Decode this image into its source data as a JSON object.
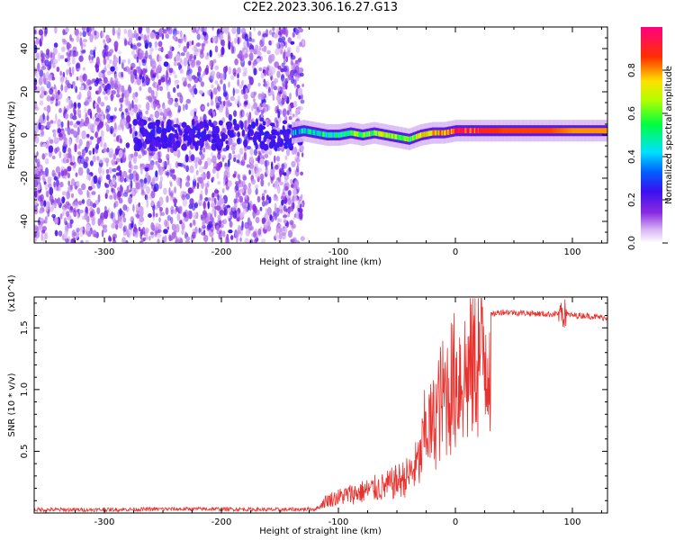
{
  "title": "C2E2.2023.306.16.27.G13",
  "chart_data": [
    {
      "type": "heatmap",
      "xlabel": "Height of straight line (km)",
      "ylabel": "Frequency (Hz)",
      "xlim": [
        -360,
        130
      ],
      "ylim": [
        -50,
        50
      ],
      "x_ticks": [
        -300,
        -200,
        -100,
        0,
        100
      ],
      "y_ticks": [
        -40,
        -20,
        0,
        20,
        40
      ],
      "colorbar": {
        "label": "Normalized spectral amplitude",
        "range": [
          0,
          1
        ],
        "ticks": [
          "0.0",
          "0.2",
          "0.4",
          "0.6",
          "0.8"
        ],
        "colormap": "white-purple-blue-cyan-green-yellow-red"
      },
      "noise_region_x": [
        -360,
        -130
      ],
      "signal_trace": {
        "x": [
          -140,
          -130,
          -120,
          -110,
          -100,
          -90,
          -80,
          -70,
          -60,
          -50,
          -40,
          -30,
          -20,
          -10,
          0,
          20,
          40,
          80,
          100,
          130
        ],
        "frequency": [
          1,
          2,
          1,
          0,
          0,
          1,
          0,
          1,
          0,
          -1,
          -2,
          0,
          1,
          1,
          2,
          2,
          2,
          2,
          2,
          2
        ],
        "amplitude": [
          0.35,
          0.4,
          0.45,
          0.5,
          0.5,
          0.55,
          0.55,
          0.6,
          0.65,
          0.6,
          0.55,
          0.7,
          0.75,
          0.8,
          0.9,
          0.9,
          0.85,
          0.85,
          0.8,
          0.8
        ]
      }
    },
    {
      "type": "line",
      "xlabel": "Height of straight line (km)",
      "ylabel": "SNR (10 * v/v)",
      "y_multiplier": "(x10^4)",
      "xlim": [
        -360,
        130
      ],
      "ylim": [
        0,
        1.75
      ],
      "x_ticks": [
        -300,
        -200,
        -100,
        0,
        100
      ],
      "y_ticks": [
        0.5,
        1.0,
        1.5
      ],
      "y_tick_labels": [
        "0.5",
        "1.0",
        "1.5"
      ],
      "color": "#e8322e",
      "series": [
        {
          "x": [
            -360,
            -300,
            -250,
            -200,
            -150,
            -120,
            -110,
            -100,
            -90,
            -80,
            -70,
            -60,
            -50,
            -40,
            -30,
            -25,
            -20,
            -15,
            -10,
            -5,
            0,
            5,
            10,
            15,
            20,
            25,
            30,
            35,
            40,
            60,
            80,
            90,
            100,
            110,
            120,
            130
          ],
          "values": [
            0.03,
            0.03,
            0.04,
            0.04,
            0.03,
            0.04,
            0.12,
            0.15,
            0.18,
            0.2,
            0.23,
            0.25,
            0.3,
            0.35,
            0.5,
            0.85,
            0.8,
            1.0,
            1.1,
            1.2,
            1.25,
            1.35,
            1.3,
            1.45,
            1.5,
            1.55,
            1.6,
            1.62,
            1.63,
            1.62,
            1.61,
            1.62,
            1.6,
            1.6,
            1.59,
            1.58
          ]
        }
      ]
    }
  ]
}
